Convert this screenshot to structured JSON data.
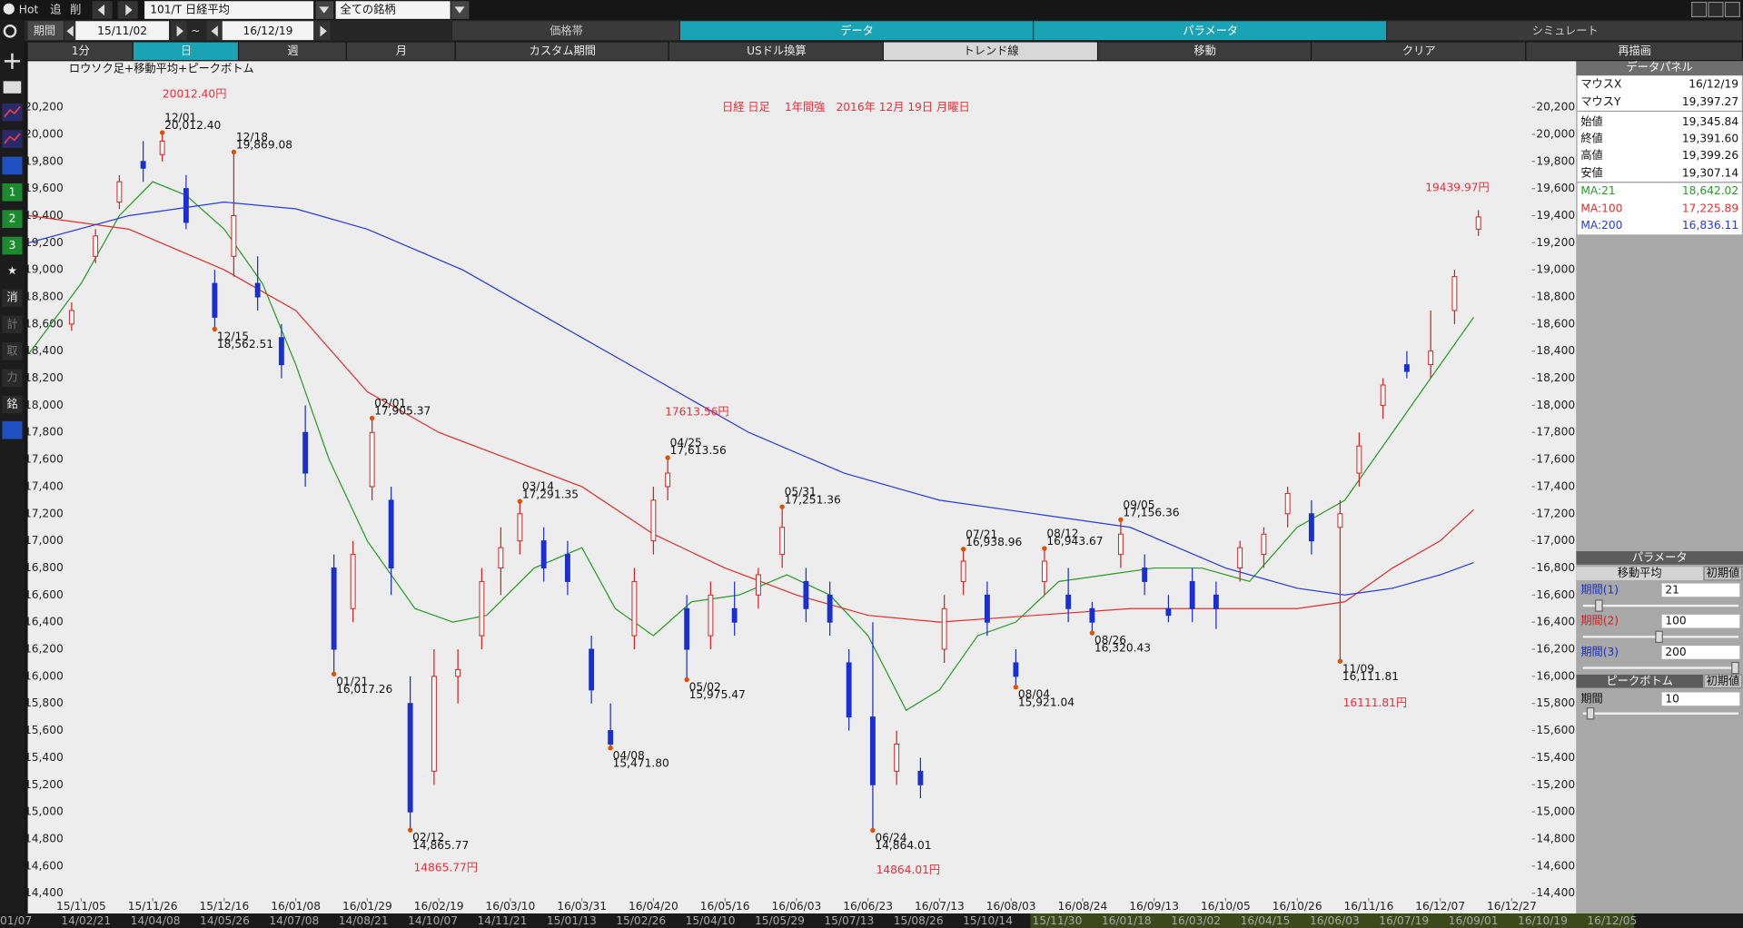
{
  "toolbar": {
    "hot": "Hot",
    "add": "追",
    "delete": "削",
    "symbol": "101/T 日経平均",
    "universe": "全ての銘柄",
    "period_label": "期間",
    "start": "15/11/02",
    "tilde": "~",
    "end": "16/12/19"
  },
  "tabs": [
    "価格帯",
    "データ",
    "パラメータ",
    "シミュレート"
  ],
  "buttons": [
    "1分",
    "日",
    "週",
    "月",
    "カスタム期間",
    "USドル換算",
    "トレンド線",
    "移動",
    "クリア",
    "再描画"
  ],
  "side_tools": [
    "1",
    "2",
    "3",
    "消",
    "計",
    "取",
    "力",
    "銘"
  ],
  "data_panel": {
    "title": "データパネル",
    "rows": [
      [
        "マウスX",
        "16/12/19"
      ],
      [
        "マウスY",
        "19,397.27"
      ],
      [
        "始値",
        "19,345.84"
      ],
      [
        "終値",
        "19,391.60"
      ],
      [
        "高値",
        "19,399.26"
      ],
      [
        "安値",
        "19,307.14"
      ]
    ],
    "ma_values": [
      "18,642.02",
      "17,225.89",
      "16,836.11"
    ]
  },
  "parameter_panel": {
    "title": "パラメータ",
    "ma_title": "移動平均",
    "reset": "初期値",
    "periods": [
      {
        "label": "期間(1)",
        "value": 21,
        "color": "#1a2fd0"
      },
      {
        "label": "期間(2)",
        "value": 100,
        "color": "#d02020"
      },
      {
        "label": "期間(3)",
        "value": 200,
        "color": "#1a2fd0"
      }
    ],
    "peak_title": "ピークボトム",
    "peak_reset": "初期値",
    "peak_period_label": "期間",
    "peak_period": 10
  },
  "bottom_scale": [
    "01/07",
    "14/02/21",
    "14/04/08",
    "14/05/26",
    "14/07/08",
    "14/08/21",
    "14/10/07",
    "14/11/21",
    "15/01/13",
    "15/02/26",
    "15/04/10",
    "15/05/29",
    "15/07/13",
    "15/08/26",
    "15/10/14",
    "15/11/30",
    "16/01/18",
    "16/03/02",
    "16/04/15",
    "16/06/03",
    "16/07/19",
    "16/09/01",
    "16/10/19",
    "16/12/05"
  ],
  "chart_data": {
    "type": "candlestick",
    "title": "日経 日足　 1年間強　2016年 12月 19日 月曜日",
    "subtitle": "ロウソク足+移動平均+ピークボトム",
    "xlim": [
      -11.2,
      304.2
    ],
    "xticks": [
      {
        "value": 0,
        "label": "15/11/05"
      },
      {
        "value": 15,
        "label": "15/11/26"
      },
      {
        "value": 30,
        "label": "15/12/16"
      },
      {
        "value": 45,
        "label": "16/01/08"
      },
      {
        "value": 60,
        "label": "16/01/29"
      },
      {
        "value": 75,
        "label": "16/02/19"
      },
      {
        "value": 90,
        "label": "16/03/10"
      },
      {
        "value": 105,
        "label": "16/03/31"
      },
      {
        "value": 120,
        "label": "16/04/20"
      },
      {
        "value": 135,
        "label": "16/05/16"
      },
      {
        "value": 150,
        "label": "16/06/03"
      },
      {
        "value": 165,
        "label": "16/06/23"
      },
      {
        "value": 180,
        "label": "16/07/13"
      },
      {
        "value": 195,
        "label": "16/08/03"
      },
      {
        "value": 210,
        "label": "16/08/24"
      },
      {
        "value": 225,
        "label": "16/09/13"
      },
      {
        "value": 240,
        "label": "16/10/05"
      },
      {
        "value": 255,
        "label": "16/10/26"
      },
      {
        "value": 270,
        "label": "16/11/16"
      },
      {
        "value": 285,
        "label": "16/12/07"
      },
      {
        "value": 300,
        "label": "16/12/27"
      }
    ],
    "ylim": [
      14250,
      20540
    ],
    "yticks": [
      {
        "value": 14400,
        "label": "14,400"
      },
      {
        "value": 14600,
        "label": "14,600"
      },
      {
        "value": 14800,
        "label": "14,800"
      },
      {
        "value": 15000,
        "label": "15,000"
      },
      {
        "value": 15200,
        "label": "15,200"
      },
      {
        "value": 15400,
        "label": "15,400"
      },
      {
        "value": 15600,
        "label": "15,600"
      },
      {
        "value": 15800,
        "label": "15,800"
      },
      {
        "value": 16000,
        "label": "16,000"
      },
      {
        "value": 16200,
        "label": "16,200"
      },
      {
        "value": 16400,
        "label": "16,400"
      },
      {
        "value": 16600,
        "label": "16,600"
      },
      {
        "value": 16800,
        "label": "16,800"
      },
      {
        "value": 17000,
        "label": "17,000"
      },
      {
        "value": 17200,
        "label": "17,200"
      },
      {
        "value": 17400,
        "label": "17,400"
      },
      {
        "value": 17600,
        "label": "17,600"
      },
      {
        "value": 17800,
        "label": "17,800"
      },
      {
        "value": 18000,
        "label": "18,000"
      },
      {
        "value": 18200,
        "label": "18,200"
      },
      {
        "value": 18400,
        "label": "18,400"
      },
      {
        "value": 18600,
        "label": "18,600"
      },
      {
        "value": 18800,
        "label": "18,800"
      },
      {
        "value": 19000,
        "label": "19,000"
      },
      {
        "value": 19200,
        "label": "19,200"
      },
      {
        "value": 19400,
        "label": "19,400"
      },
      {
        "value": 19600,
        "label": "19,600"
      },
      {
        "value": 19800,
        "label": "19,800"
      },
      {
        "value": 20000,
        "label": "20,000"
      },
      {
        "value": 20200,
        "label": "20,200"
      }
    ],
    "up_color": "#d42020",
    "down_color": "#1a2fd0",
    "candles": {
      "x": [
        -2,
        3,
        8,
        13,
        17,
        22,
        28,
        32,
        37,
        42,
        47,
        53,
        57,
        61,
        65,
        69,
        74,
        79,
        84,
        88,
        92,
        97,
        102,
        107,
        111,
        116,
        120,
        123,
        127,
        132,
        137,
        142,
        147,
        152,
        157,
        161,
        166,
        171,
        176,
        181,
        185,
        190,
        196,
        202,
        207,
        212,
        218,
        223,
        228,
        233,
        238,
        243,
        248,
        253,
        258,
        264,
        268,
        273,
        278,
        283,
        288,
        293
      ],
      "open": [
        18600,
        19100,
        19500,
        19800,
        19850,
        19600,
        18900,
        19100,
        18900,
        18500,
        17800,
        16800,
        16500,
        17400,
        17300,
        15800,
        15300,
        16000,
        16300,
        16800,
        17000,
        17000,
        16900,
        16200,
        15600,
        16300,
        17000,
        17400,
        16500,
        16300,
        16500,
        16600,
        16900,
        16700,
        16600,
        16100,
        15700,
        15300,
        15300,
        16200,
        16700,
        16600,
        16100,
        16700,
        16600,
        16500,
        16900,
        16800,
        16500,
        16700,
        16600,
        16800,
        16900,
        17200,
        17200,
        17100,
        17500,
        18000,
        18300,
        18300,
        18700,
        19300
      ],
      "high": [
        18760,
        19300,
        19700,
        19950,
        20012.4,
        19700,
        19000,
        19869.08,
        19100,
        18600,
        18000,
        16900,
        17000,
        17905.37,
        17400,
        16000,
        16200,
        16200,
        16800,
        17100,
        17291.35,
        17100,
        17000,
        16300,
        15800,
        16800,
        17400,
        17613.56,
        16600,
        16700,
        16700,
        16800,
        17251.36,
        16800,
        16700,
        16200,
        16400,
        15600,
        15400,
        16600,
        16938.96,
        16700,
        16200,
        16943.67,
        16800,
        16550,
        17156.36,
        16900,
        16600,
        16800,
        16700,
        17000,
        17100,
        17400,
        17300,
        17300,
        17800,
        18200,
        18400,
        18700,
        19000,
        19439.97
      ],
      "low": [
        18550,
        19050,
        19450,
        19650,
        19800,
        19300,
        18562.51,
        18950,
        18700,
        18200,
        17400,
        16017.26,
        16400,
        17300,
        16600,
        14865.77,
        15200,
        15800,
        16200,
        16600,
        16900,
        16700,
        16600,
        15800,
        15471.8,
        16200,
        16900,
        17300,
        15975.47,
        16200,
        16300,
        16500,
        16800,
        16400,
        16300,
        15600,
        14864.01,
        15200,
        15100,
        16100,
        16600,
        16300,
        15921.04,
        16600,
        16400,
        16320.43,
        16800,
        16600,
        16400,
        16400,
        16350,
        16700,
        16800,
        17100,
        16900,
        16111.81,
        17400,
        17900,
        18200,
        18200,
        18600,
        19250
      ],
      "close": [
        18700,
        19250,
        19650,
        19750,
        19950,
        19350,
        18650,
        19400,
        18800,
        18300,
        17500,
        16200,
        16900,
        17800,
        16800,
        15000,
        16000,
        16050,
        16700,
        16950,
        17200,
        16800,
        16700,
        15900,
        15500,
        16700,
        17300,
        17500,
        16200,
        16600,
        16400,
        16750,
        17100,
        16500,
        16400,
        15700,
        15200,
        15500,
        15200,
        16500,
        16850,
        16400,
        16000,
        16850,
        16500,
        16400,
        17050,
        16700,
        16450,
        16500,
        16500,
        16950,
        17050,
        17350,
        17000,
        17200,
        17700,
        18150,
        18250,
        18400,
        18950,
        19390
      ]
    },
    "series": [
      {
        "name": "MA:21",
        "color": "#2a9a2a",
        "x": [
          -11,
          0,
          8,
          15,
          22,
          30,
          38,
          45,
          52,
          60,
          70,
          78,
          85,
          95,
          105,
          112,
          120,
          128,
          138,
          148,
          157,
          165,
          173,
          180,
          188,
          196,
          205,
          215,
          225,
          235,
          245,
          255,
          265,
          275,
          285,
          292
        ],
        "values": [
          18380,
          18900,
          19400,
          19650,
          19550,
          19300,
          18900,
          18300,
          17600,
          17000,
          16500,
          16400,
          16450,
          16800,
          16950,
          16500,
          16300,
          16550,
          16600,
          16750,
          16600,
          16300,
          15750,
          15900,
          16300,
          16400,
          16700,
          16750,
          16800,
          16800,
          16700,
          17100,
          17300,
          17800,
          18300,
          18650
        ]
      },
      {
        "name": "MA:100",
        "color": "#e03030",
        "x": [
          -11,
          10,
          30,
          45,
          60,
          75,
          90,
          105,
          120,
          135,
          150,
          165,
          180,
          200,
          220,
          240,
          255,
          265,
          275,
          285,
          292
        ],
        "values": [
          19400,
          19300,
          19000,
          18700,
          18100,
          17800,
          17600,
          17400,
          17050,
          16800,
          16600,
          16450,
          16400,
          16450,
          16500,
          16500,
          16500,
          16550,
          16800,
          17000,
          17230
        ]
      },
      {
        "name": "MA:200",
        "color": "#2a3ad8",
        "x": [
          -11,
          10,
          30,
          45,
          60,
          80,
          100,
          120,
          140,
          160,
          180,
          200,
          220,
          240,
          255,
          265,
          275,
          285,
          292
        ],
        "values": [
          19200,
          19400,
          19500,
          19450,
          19300,
          19000,
          18600,
          18200,
          17800,
          17500,
          17300,
          17200,
          17100,
          16800,
          16650,
          16600,
          16650,
          16750,
          16840
        ]
      }
    ],
    "peak_color": "#e05000",
    "peak_highs": [
      {
        "x": 17,
        "value": 20012.4,
        "date": "12/01",
        "label": "20,012.40"
      },
      {
        "x": 32,
        "value": 19869.08,
        "date": "12/18",
        "label": "19,869.08"
      },
      {
        "x": 61,
        "value": 17905.37,
        "date": "02/01",
        "label": "17,905.37"
      },
      {
        "x": 92,
        "value": 17291.35,
        "date": "03/14",
        "label": "17,291.35"
      },
      {
        "x": 123,
        "value": 17613.56,
        "date": "04/25",
        "label": "17,613.56"
      },
      {
        "x": 147,
        "value": 17251.36,
        "date": "05/31",
        "label": "17,251.36"
      },
      {
        "x": 185,
        "value": 16938.96,
        "date": "07/21",
        "label": "16,938.96"
      },
      {
        "x": 202,
        "value": 16943.67,
        "date": "08/12",
        "label": "16,943.67"
      },
      {
        "x": 218,
        "value": 17156.36,
        "date": "09/05",
        "label": "17,156.36"
      }
    ],
    "peak_lows": [
      {
        "x": 28,
        "value": 18562.51,
        "date": "12/15",
        "label": "18,562.51"
      },
      {
        "x": 53,
        "value": 16017.26,
        "date": "01/21",
        "label": "16,017.26"
      },
      {
        "x": 69,
        "value": 14865.77,
        "date": "02/12",
        "label": "14,865.77"
      },
      {
        "x": 111,
        "value": 15471.8,
        "date": "04/08",
        "label": "15,471.80"
      },
      {
        "x": 127,
        "value": 15975.47,
        "date": "05/02",
        "label": "15,975.47"
      },
      {
        "x": 166,
        "value": 14864.01,
        "date": "06/24",
        "label": "14,864.01"
      },
      {
        "x": 196,
        "value": 15921.04,
        "date": "08/04",
        "label": "15,921.04"
      },
      {
        "x": 212,
        "value": 16320.43,
        "date": "08/26",
        "label": "16,320.43"
      },
      {
        "x": 264,
        "value": 16111.81,
        "date": "11/09",
        "label": "16,111.81"
      }
    ],
    "callouts": [
      "20012.40円",
      "17613.56円",
      "14865.77円",
      "14864.01円",
      "19439.97円",
      "16111.81円"
    ]
  }
}
